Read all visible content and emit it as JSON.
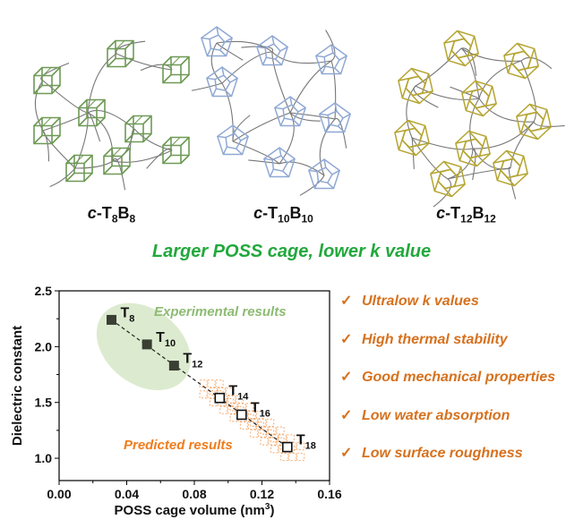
{
  "panels": [
    {
      "prefix": "c",
      "main": "-T",
      "sub1": "8",
      "mid": "B",
      "sub2": "8",
      "cage_color": "#6e9a55"
    },
    {
      "prefix": "c",
      "main": "-T",
      "sub1": "10",
      "mid": "B",
      "sub2": "10",
      "cage_color": "#8fa8d4"
    },
    {
      "prefix": "c",
      "main": "-T",
      "sub1": "12",
      "mid": "B",
      "sub2": "12",
      "cage_color": "#b5a532"
    }
  ],
  "headline": {
    "text": "Larger POSS cage, lower k value",
    "color": "#22a83c"
  },
  "properties": {
    "check": "✓",
    "color": "#d6711e",
    "items": [
      "Ultralow k values",
      "High thermal stability",
      "Good mechanical properties",
      "Low water absorption",
      "Low surface roughness"
    ]
  },
  "chart_data": {
    "type": "scatter",
    "xlabel": "POSS cage volume (nm",
    "xlabel_sup": "3",
    "xlabel_end": ")",
    "ylabel": "Dielectric constant",
    "xlim": [
      0,
      0.16
    ],
    "ylim": [
      0.8,
      2.5
    ],
    "xticks": [
      "0.00",
      "0.04",
      "0.08",
      "0.12",
      "0.16"
    ],
    "yticks": [
      "1.0",
      "1.5",
      "2.0",
      "2.5"
    ],
    "series": [
      {
        "name": "Experimental results",
        "marker": "filled-square",
        "color": "#3a3f33",
        "region_color": "#dcebcf",
        "label_color": "#8dbb72",
        "points": [
          {
            "x": 0.031,
            "y": 2.24,
            "t": "T",
            "sub": "8"
          },
          {
            "x": 0.052,
            "y": 2.02,
            "t": "T",
            "sub": "10"
          },
          {
            "x": 0.068,
            "y": 1.83,
            "t": "T",
            "sub": "12"
          }
        ]
      },
      {
        "name": "Predicted results",
        "marker": "open-square",
        "color": "#111111",
        "region_color": "#f5a86b",
        "label_color": "#f07c1c",
        "points": [
          {
            "x": 0.095,
            "y": 1.54,
            "t": "T",
            "sub": "14"
          },
          {
            "x": 0.108,
            "y": 1.39,
            "t": "T",
            "sub": "16"
          },
          {
            "x": 0.135,
            "y": 1.1,
            "t": "T",
            "sub": "18"
          }
        ]
      }
    ],
    "trendline": "dashed"
  }
}
